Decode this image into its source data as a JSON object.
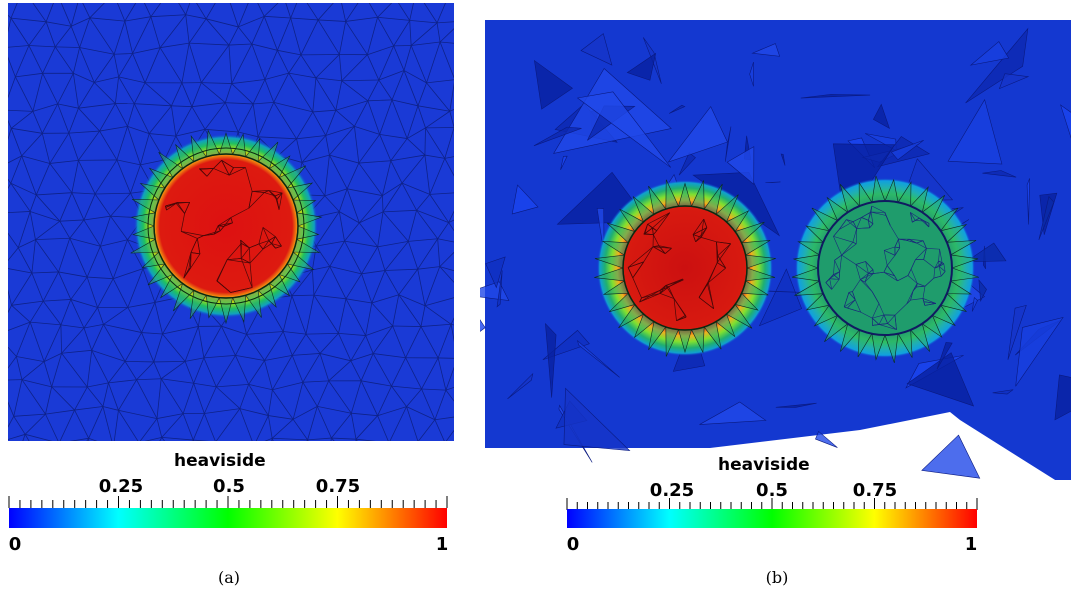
{
  "panel_a": {
    "colorbar": {
      "title": "heaviside",
      "major_labels": [
        "0.25",
        "0.5",
        "0.75"
      ],
      "end_labels": [
        "0",
        "1"
      ]
    },
    "caption": "(a)"
  },
  "panel_b": {
    "colorbar": {
      "title": "heaviside",
      "major_labels": [
        "0.25",
        "0.5",
        "0.75"
      ],
      "end_labels": [
        "0",
        "1"
      ]
    },
    "caption": "(b)"
  },
  "colormap": [
    "#0000ff",
    "#00ffff",
    "#00ff00",
    "#ffff00",
    "#ff0000"
  ]
}
